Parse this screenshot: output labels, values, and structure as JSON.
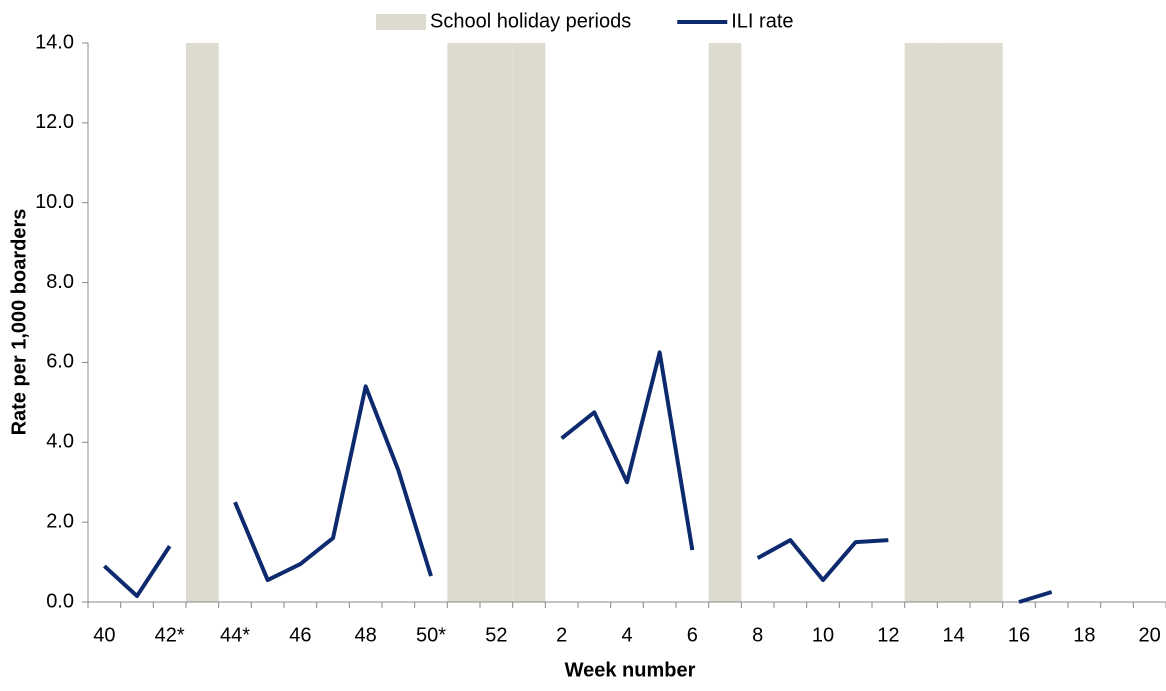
{
  "chart_data": {
    "type": "combo",
    "x_label": "Week number",
    "y_label": "Rate per 1,000 boarders",
    "categories": [
      "40",
      null,
      "42*",
      null,
      "44*",
      null,
      "46",
      null,
      "48",
      null,
      "50*",
      null,
      "52",
      null,
      "2",
      null,
      "4",
      null,
      "6",
      null,
      "8",
      null,
      "10",
      null,
      "12",
      null,
      "14",
      null,
      "16",
      null,
      "18",
      null,
      "20"
    ],
    "series": [
      {
        "name": "School holiday periods",
        "type": "bar",
        "color": "#dddbcf",
        "values": [
          null,
          null,
          null,
          14,
          null,
          null,
          null,
          null,
          null,
          null,
          null,
          14,
          14,
          14,
          null,
          null,
          null,
          null,
          null,
          14,
          null,
          null,
          null,
          null,
          null,
          14,
          14,
          14,
          null,
          null,
          null,
          null,
          null
        ]
      },
      {
        "name": "ILI rate",
        "type": "line",
        "color": "#0e2a6e",
        "values": [
          0.9,
          0.15,
          1.4,
          null,
          2.5,
          0.55,
          0.95,
          1.6,
          5.4,
          3.3,
          0.65,
          null,
          null,
          null,
          4.1,
          4.75,
          3.0,
          6.25,
          1.3,
          null,
          1.1,
          1.55,
          0.55,
          1.5,
          1.55,
          null,
          null,
          null,
          0.0,
          0.25,
          null,
          null,
          null
        ]
      }
    ],
    "ylim": [
      0,
      14
    ],
    "yticks": [
      {
        "value": 0,
        "label": "0.0"
      },
      {
        "value": 2,
        "label": "2.0"
      },
      {
        "value": 4,
        "label": "4.0"
      },
      {
        "value": 6,
        "label": "6.0"
      },
      {
        "value": 8,
        "label": "8.0"
      },
      {
        "value": 10,
        "label": "10.0"
      },
      {
        "value": 12,
        "label": "12.0"
      },
      {
        "value": 14,
        "label": "14.0"
      }
    ],
    "legend": "top"
  }
}
